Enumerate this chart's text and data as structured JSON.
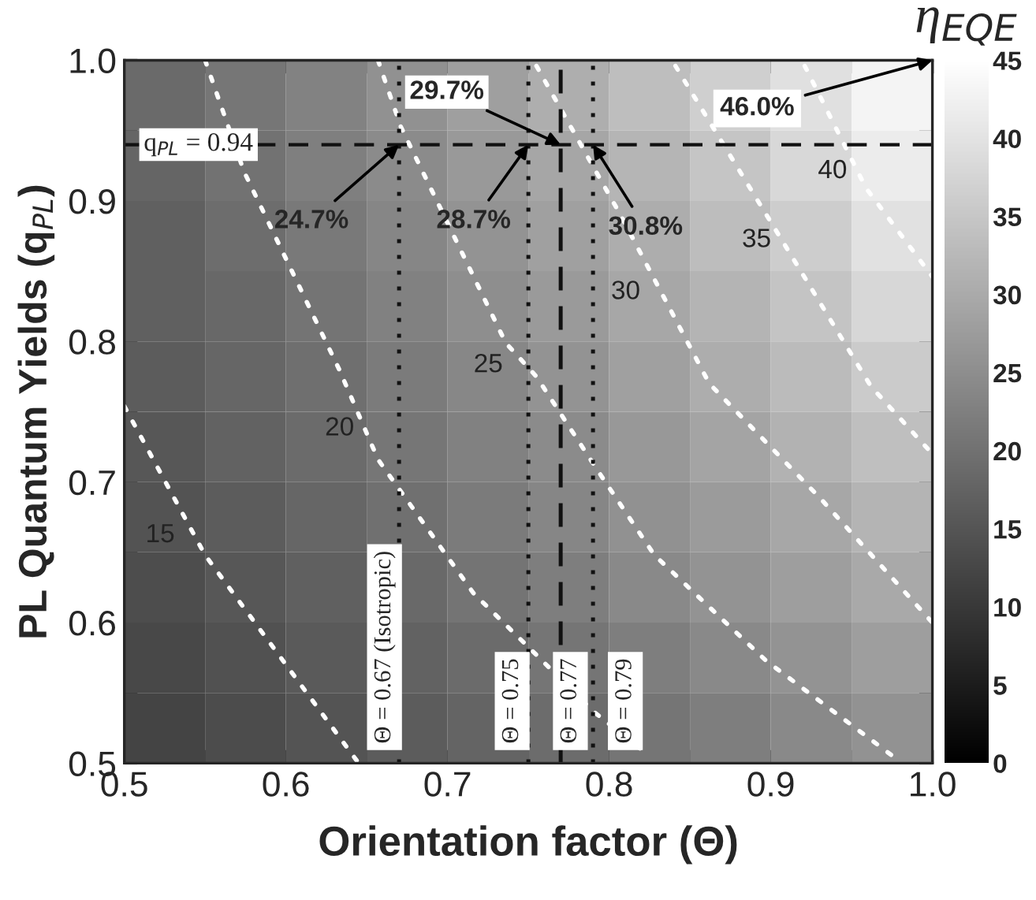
{
  "chart_data": {
    "type": "heatmap",
    "xlabel": "Orientation factor (Θ)",
    "ylabel": "PL Quantum Yields (q$_{PL}$)",
    "clabel": "η$_{EQE}$",
    "x": [
      0.525,
      0.575,
      0.625,
      0.675,
      0.725,
      0.775,
      0.825,
      0.875,
      0.925,
      0.975
    ],
    "y": [
      0.975,
      0.925,
      0.875,
      0.825,
      0.775,
      0.725,
      0.675,
      0.625,
      0.575,
      0.525
    ],
    "cells": [
      [
        18.8,
        20.8,
        22.9,
        25.5,
        28.0,
        30.6,
        33.5,
        36.4,
        39.5,
        43.0
      ],
      [
        17.8,
        20.1,
        22.4,
        24.6,
        26.9,
        29.3,
        31.9,
        34.8,
        38.1,
        41.5
      ],
      [
        16.9,
        19.2,
        21.4,
        23.7,
        26.0,
        28.2,
        30.5,
        33.3,
        36.1,
        39.6
      ],
      [
        17.0,
        18.3,
        20.5,
        22.7,
        25.0,
        27.2,
        29.5,
        31.7,
        34.6,
        37.8
      ],
      [
        16.3,
        18.0,
        19.6,
        21.7,
        23.8,
        26.0,
        28.2,
        30.5,
        33.0,
        35.8
      ],
      [
        15.4,
        17.4,
        18.9,
        20.8,
        22.7,
        24.6,
        26.8,
        28.9,
        31.3,
        33.6
      ],
      [
        14.6,
        16.3,
        18.0,
        19.8,
        21.7,
        23.6,
        25.5,
        27.4,
        29.4,
        31.7
      ],
      [
        13.6,
        15.3,
        17.0,
        18.6,
        20.4,
        22.3,
        24.1,
        26.0,
        27.9,
        29.8
      ],
      [
        12.8,
        14.3,
        15.9,
        17.4,
        18.9,
        20.6,
        22.2,
        24.1,
        26.0,
        27.8
      ],
      [
        12.0,
        13.4,
        14.9,
        16.2,
        17.6,
        19.1,
        20.7,
        22.3,
        24.2,
        25.8
      ]
    ],
    "clim": [
      0,
      45
    ],
    "cticks": [
      0,
      5,
      10,
      15,
      20,
      25,
      30,
      35,
      40,
      45
    ],
    "xlim": [
      0.5,
      1.0
    ],
    "ylim": [
      0.5,
      1.0
    ],
    "xticks": [
      0.5,
      {
        "value": 0.55,
        "label": null
      },
      0.6,
      {
        "value": 0.65,
        "label": null
      },
      0.7,
      {
        "value": 0.75,
        "label": null
      },
      0.8,
      {
        "value": 0.85,
        "label": null
      },
      0.9,
      {
        "value": 0.95,
        "label": null
      },
      {
        "value": 1,
        "label": "1.0"
      }
    ],
    "yticks": [
      0.5,
      {
        "value": 0.55,
        "label": null
      },
      0.6,
      {
        "value": 0.65,
        "label": null
      },
      0.7,
      {
        "value": 0.75,
        "label": null
      },
      0.8,
      {
        "value": 0.85,
        "label": null
      },
      0.9,
      {
        "value": 0.95,
        "label": null
      },
      {
        "value": 1,
        "label": "1.0"
      }
    ],
    "series": [
      {
        "type": "line",
        "color": "#ffffff",
        "line_style": "dotted",
        "x": [
          0.5,
          0.55,
          0.645
        ],
        "values": [
          0.754,
          0.648,
          0.5
        ]
      },
      {
        "type": "line",
        "color": "#ffffff",
        "line_style": "dotted",
        "x": [
          0.55,
          0.574,
          0.633,
          0.657,
          0.716,
          0.755,
          0.79,
          0.824
        ],
        "values": [
          1.0,
          0.921,
          0.78,
          0.716,
          0.621,
          0.577,
          0.537,
          0.506
        ]
      },
      {
        "type": "line",
        "color": "#ffffff",
        "line_style": "dotted",
        "x": [
          0.657,
          0.671,
          0.736,
          0.755,
          0.793,
          0.828,
          0.897,
          0.979
        ],
        "values": [
          1.0,
          0.953,
          0.799,
          0.775,
          0.708,
          0.648,
          0.573,
          0.502
        ]
      },
      {
        "type": "line",
        "color": "#ffffff",
        "line_style": "dotted",
        "x": [
          0.755,
          0.807,
          0.862,
          0.931,
          1.0
        ],
        "values": [
          0.996,
          0.89,
          0.77,
          0.688,
          0.6
        ]
      },
      {
        "type": "line",
        "color": "#ffffff",
        "line_style": "dotted",
        "x": [
          0.841,
          0.917,
          0.962,
          1.0
        ],
        "values": [
          0.996,
          0.853,
          0.768,
          0.72
        ]
      },
      {
        "type": "line",
        "color": "#ffffff",
        "line_style": "dotted",
        "x": [
          0.921,
          0.959,
          1.0
        ],
        "values": [
          0.996,
          0.909,
          0.846
        ]
      }
    ],
    "ref_lines": [
      {
        "axis": "x",
        "value": 0.67,
        "label": "Θ = 0.67 (Isotropic)",
        "color": "#111111",
        "line_style": "dotted"
      },
      {
        "axis": "x",
        "value": 0.75,
        "label": "Θ = 0.75",
        "color": "#111111",
        "line_style": "dotted"
      },
      {
        "axis": "x",
        "value": 0.77,
        "label": "Θ = 0.77",
        "color": "#111111",
        "line_style": "dashed"
      },
      {
        "axis": "x",
        "value": 0.79,
        "label": "Θ = 0.79",
        "color": "#111111",
        "line_style": "dotted"
      },
      {
        "axis": "y",
        "value": 0.94,
        "label": "q$_{PL}$ = 0.94",
        "color": "#111111",
        "line_style": "dashed"
      }
    ],
    "annotations": [
      {
        "text": "24.7%",
        "x": 0.67,
        "y": 0.94
      },
      {
        "text": "28.7%",
        "x": 0.75,
        "y": 0.94
      },
      {
        "text": "29.7%",
        "x": 0.77,
        "y": 0.94
      },
      {
        "text": "30.8%",
        "x": 0.79,
        "y": 0.94
      },
      "46.0%",
      {
        "text": "15",
        "x": 0.538,
        "y": 0.662
      },
      {
        "text": "20",
        "x": 0.649,
        "y": 0.738
      },
      {
        "text": "25",
        "x": 0.741,
        "y": 0.783
      },
      {
        "text": "30",
        "x": 0.826,
        "y": 0.835
      },
      {
        "text": "35",
        "x": 0.907,
        "y": 0.872
      },
      {
        "text": "40",
        "x": 0.954,
        "y": 0.921
      }
    ],
    "grid": false,
    "legend": false
  }
}
